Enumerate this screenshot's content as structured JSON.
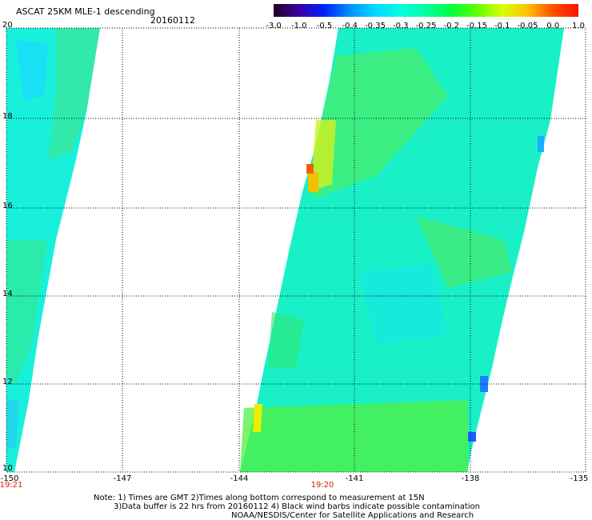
{
  "header": {
    "title": "ASCAT 25KM MLE-1 descending",
    "date": "20160112"
  },
  "colorbar": {
    "labels": [
      "-3.0",
      "-1.0",
      "-0.5",
      "-0.4",
      "-0.35",
      "-0.3",
      "-0.25",
      "-0.2",
      "-0.15",
      "-0.1",
      "-0.05",
      "0.0",
      "1.0"
    ],
    "colors": [
      "#220022",
      "#3b00a0",
      "#0020ff",
      "#0090ff",
      "#00d8ff",
      "#00ffe0",
      "#00ffa0",
      "#00ff40",
      "#60ff00",
      "#d8ff00",
      "#ffc000",
      "#ff5000",
      "#ff1000"
    ]
  },
  "axes": {
    "lat_ticks": [
      "20",
      "18",
      "16",
      "14",
      "12",
      "10"
    ],
    "lon_ticks": [
      "-150",
      "-147",
      "-144",
      "-141",
      "-138",
      "-135"
    ]
  },
  "times": {
    "left": "19:21",
    "center": "19:20"
  },
  "notes": {
    "line1": "Note: 1) Times are GMT 2)Times along bottom correspond to measurement at 15N",
    "line2": "3)Data buffer is 22 hrs from 20160112 4) Black wind barbs indicate possible contamination",
    "line3": "NOAA/NESDIS/Center for Satellite Applications and Research"
  }
}
